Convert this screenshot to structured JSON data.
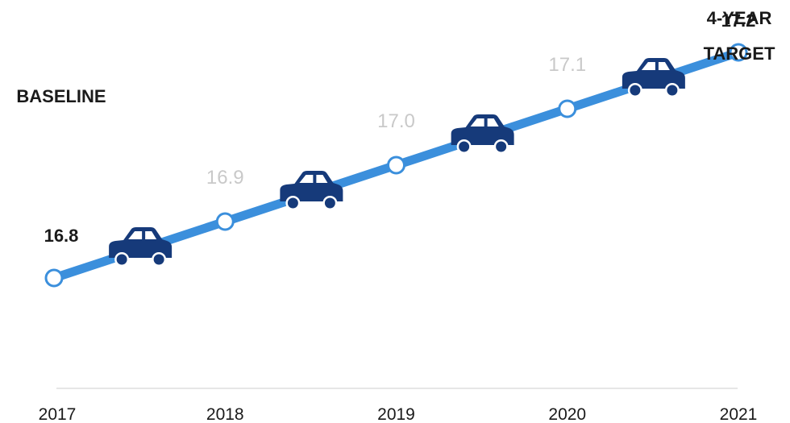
{
  "chart_data": {
    "type": "line",
    "x": [
      "2017",
      "2018",
      "2019",
      "2020",
      "2021"
    ],
    "values": [
      16.8,
      16.9,
      17.0,
      17.1,
      17.2
    ],
    "value_labels": [
      "16.8",
      "16.9",
      "17.0",
      "17.1",
      "17.2"
    ],
    "ylim": [
      16.75,
      17.25
    ],
    "grid": false,
    "annotations": {
      "start": "BASELINE",
      "end_line1": "4-YEAR",
      "end_line2": "TARGET"
    },
    "car_icons": 4
  },
  "colors": {
    "line": "#3b8fdc",
    "marker_fill": "#ffffff",
    "car": "#163a7a",
    "baseline_axis": "#e6e6e6",
    "emphasis_label": "#1a1a1a",
    "muted_label": "#c9c9c9"
  },
  "icons": [
    "car-icon"
  ]
}
